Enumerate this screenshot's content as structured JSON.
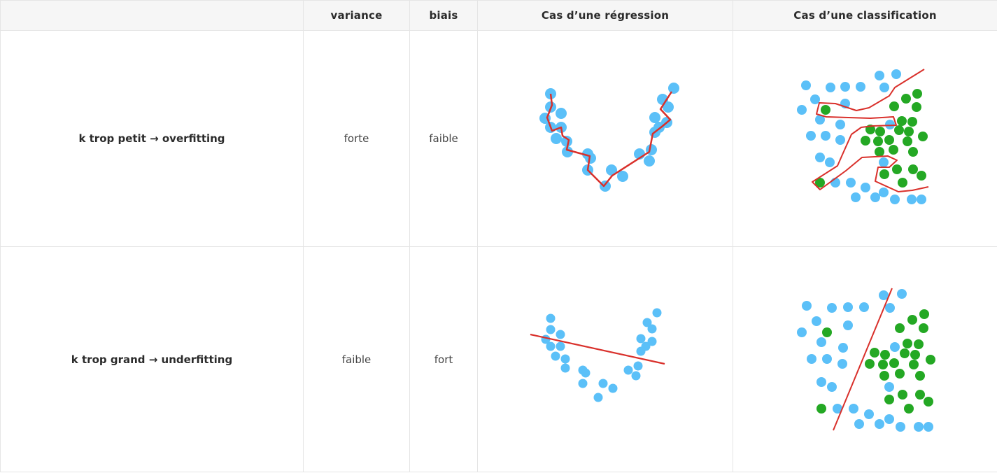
{
  "headers": [
    "",
    "variance",
    "biais",
    "Cas d’une régression",
    "Cas d’une classification"
  ],
  "rows": [
    {
      "label": "k trop petit → overfitting",
      "variance": "forte",
      "biais": "faible"
    },
    {
      "label": "k trop grand → underfitting",
      "variance": "faible",
      "biais": "fort"
    }
  ],
  "colors": {
    "point_blue": "#5bc0f8",
    "point_green": "#24a824",
    "boundary_red": "#d9302b",
    "header_bg": "#f6f6f6",
    "border": "#e5e5e5"
  },
  "illustrations": {
    "regression_overfit": "jagged regression curve through every point",
    "regression_underfit": "straight regression line missing the V-shaped points",
    "classification_overfit": "tortuous decision boundary isolating each green point",
    "classification_underfit": "single straight decision boundary"
  }
}
